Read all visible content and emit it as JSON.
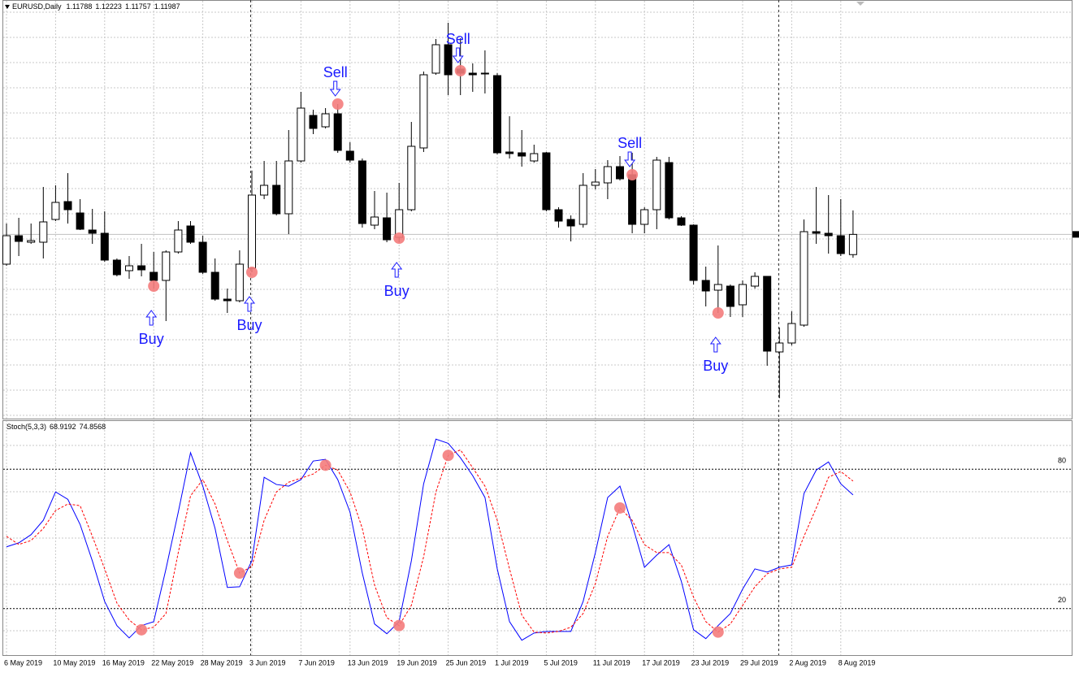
{
  "chart_data": [
    {
      "type": "candlestick",
      "title": "EURUSD,Daily",
      "categories": [
        "6 May 2019",
        null,
        null,
        null,
        "10 May 2019",
        null,
        null,
        null,
        "16 May 2019",
        null,
        null,
        null,
        "22 May 2019",
        null,
        null,
        null,
        "28 May 2019",
        null,
        null,
        null,
        "3 Jun 2019",
        null,
        null,
        null,
        "7 Jun 2019",
        null,
        null,
        null,
        "13 Jun 2019",
        null,
        null,
        null,
        "19 Jun 2019",
        null,
        null,
        null,
        "25 Jun 2019",
        null,
        null,
        null,
        "1 Jul 2019",
        null,
        null,
        null,
        "5 Jul 2019",
        null,
        null,
        null,
        "11 Jul 2019",
        null,
        null,
        null,
        "17 Jul 2019",
        null,
        null,
        null,
        "23 Jul 2019",
        null,
        null,
        null,
        "29 Jul 2019",
        null,
        null,
        null,
        "2 Aug 2019",
        null,
        null,
        null,
        "8 Aug 2019",
        null
      ],
      "open": [
        1.11694,
        1.11974,
        1.1191,
        1.1191,
        1.12134,
        1.1231,
        1.12198,
        1.1203,
        1.11998,
        1.11734,
        1.1163,
        1.11678,
        1.11614,
        1.11534,
        1.11814,
        1.1207,
        1.1191,
        1.11614,
        1.1135,
        1.11334,
        1.11654,
        1.12374,
        1.1247,
        1.1219,
        1.1271,
        1.13158,
        1.13046,
        1.13174,
        1.12806,
        1.1271,
        1.12078,
        1.1215,
        1.11958,
        1.1223,
        1.12838,
        1.13574,
        1.13854,
        1.13614,
        1.13574,
        1.13574,
        1.1355,
        1.12798,
        1.1279,
        1.1271,
        1.1279,
        1.1223,
        1.12134,
        1.12086,
        1.1247,
        1.12494,
        1.12654,
        1.12574,
        1.12086,
        1.1223,
        1.12694,
        1.1215,
        1.12078,
        1.11534,
        1.11438,
        1.11478,
        1.11294,
        1.11478,
        1.11574,
        1.1083,
        1.10918,
        1.11094,
        1.12014,
        1.11998,
        1.11974,
        1.11788
      ],
      "high": [
        1.12094,
        1.1215,
        1.12094,
        1.12454,
        1.1247,
        1.1259,
        1.12334,
        1.12238,
        1.12214,
        1.1175,
        1.11774,
        1.11894,
        1.11814,
        1.1183,
        1.12118,
        1.12118,
        1.11974,
        1.1175,
        1.11454,
        1.1183,
        1.12614,
        1.1271,
        1.1271,
        1.13014,
        1.1339,
        1.13214,
        1.1323,
        1.1327,
        1.12894,
        1.12734,
        1.12414,
        1.12398,
        1.12494,
        1.13094,
        1.1359,
        1.1391,
        1.1407,
        1.13918,
        1.1367,
        1.13798,
        1.13574,
        1.1315,
        1.13014,
        1.1287,
        1.12798,
        1.12254,
        1.12174,
        1.1259,
        1.1263,
        1.12718,
        1.12758,
        1.1279,
        1.12254,
        1.1275,
        1.1275,
        1.12166,
        1.12086,
        1.1167,
        1.11878,
        1.11494,
        1.11534,
        1.11614,
        1.11574,
        1.1107,
        1.1123,
        1.12134,
        1.12454,
        1.12374,
        1.12334,
        1.12223
      ],
      "low": [
        1.11678,
        1.11774,
        1.11894,
        1.1175,
        1.12118,
        1.12094,
        1.1203,
        1.11894,
        1.11718,
        1.11574,
        1.1155,
        1.11574,
        1.11454,
        1.11134,
        1.11798,
        1.11894,
        1.11598,
        1.11334,
        1.11214,
        1.11318,
        1.11614,
        1.12334,
        1.12174,
        1.1199,
        1.12694,
        1.12974,
        1.1303,
        1.1279,
        1.12694,
        1.12054,
        1.12038,
        1.1191,
        1.1191,
        1.12214,
        1.12798,
        1.13558,
        1.13358,
        1.13358,
        1.1339,
        1.13374,
        1.12774,
        1.12734,
        1.12654,
        1.12694,
        1.12214,
        1.12054,
        1.11918,
        1.12054,
        1.1243,
        1.12334,
        1.12518,
        1.11998,
        1.11998,
        1.12038,
        1.12134,
        1.1207,
        1.11494,
        1.11278,
        1.11214,
        1.11174,
        1.11174,
        1.11454,
        1.10694,
        1.10374,
        1.10894,
        1.11078,
        1.11894,
        1.11798,
        1.11774,
        1.11757
      ],
      "close": [
        1.11974,
        1.11918,
        1.11926,
        1.1211,
        1.12302,
        1.1223,
        1.12038,
        1.11998,
        1.11734,
        1.1159,
        1.11678,
        1.11638,
        1.11534,
        1.11814,
        1.1203,
        1.1191,
        1.11614,
        1.1135,
        1.11334,
        1.11694,
        1.12374,
        1.1247,
        1.1219,
        1.1271,
        1.1323,
        1.1303,
        1.13174,
        1.12814,
        1.12718,
        1.12094,
        1.12158,
        1.11934,
        1.1223,
        1.12854,
        1.13558,
        1.13854,
        1.13558,
        1.13574,
        1.13558,
        1.13566,
        1.1279,
        1.12782,
        1.12758,
        1.12782,
        1.1223,
        1.12118,
        1.1207,
        1.1247,
        1.12502,
        1.12654,
        1.12534,
        1.12086,
        1.1223,
        1.12718,
        1.1215,
        1.12078,
        1.11534,
        1.1143,
        1.11494,
        1.11278,
        1.11494,
        1.11574,
        1.10838,
        1.10918,
        1.1111,
        1.12014,
        1.11998,
        1.11974,
        1.11798,
        1.11987
      ],
      "up_color": "#ffffff",
      "down_color": "#000000",
      "ylim": [
        1.10174,
        1.14294
      ],
      "grid": true,
      "signals": {
        "color": "#f47c7c",
        "text_color": "#1a1aff",
        "values": [
          null,
          null,
          null,
          null,
          null,
          null,
          null,
          null,
          null,
          null,
          null,
          null,
          1.11478,
          null,
          null,
          null,
          null,
          null,
          null,
          null,
          1.11614,
          null,
          null,
          null,
          null,
          null,
          null,
          1.1327,
          null,
          null,
          null,
          null,
          1.1195,
          null,
          null,
          null,
          null,
          1.13598,
          null,
          null,
          null,
          null,
          null,
          null,
          null,
          null,
          null,
          null,
          null,
          null,
          null,
          1.12574,
          null,
          null,
          null,
          null,
          null,
          null,
          1.11214,
          null,
          null,
          null,
          null,
          null,
          null,
          null,
          null,
          null,
          null,
          null
        ],
        "labels": [
          null,
          null,
          null,
          null,
          null,
          null,
          null,
          null,
          null,
          null,
          null,
          null,
          "Buy",
          null,
          null,
          null,
          null,
          null,
          null,
          null,
          "Buy",
          null,
          null,
          null,
          null,
          null,
          null,
          "Sell",
          null,
          null,
          null,
          null,
          "Buy",
          null,
          null,
          null,
          null,
          "Sell",
          null,
          null,
          null,
          null,
          null,
          null,
          null,
          null,
          null,
          null,
          null,
          null,
          null,
          "Sell",
          null,
          null,
          null,
          null,
          null,
          null,
          "Buy",
          null,
          null,
          null,
          null,
          null,
          null,
          null,
          null,
          null,
          null,
          null
        ]
      }
    },
    {
      "type": "line",
      "title": "Stoch(5,3,3)",
      "ylim": [
        0,
        100
      ],
      "yticks": [
        20,
        80
      ],
      "grid": true,
      "series": [
        {
          "color": "#0000ff",
          "dashed": false,
          "values": [
            46.6,
            48.3,
            51.8,
            58.0,
            70.2,
            67.0,
            56.2,
            40.5,
            23.1,
            12.7,
            7.4,
            12.7,
            14.4,
            37.1,
            61.5,
            87.1,
            72.7,
            54.5,
            29.1,
            29.4,
            40.6,
            76.5,
            73.4,
            72.7,
            75.5,
            83.5,
            84.2,
            75.5,
            61.5,
            35.3,
            13.4,
            9.2,
            14.4,
            40.6,
            73.7,
            92.9,
            91.1,
            84.9,
            77.2,
            67.8,
            37.1,
            14.4,
            6.4,
            9.5,
            10.2,
            10.2,
            10.2,
            23.1,
            44.1,
            67.8,
            72.7,
            56.2,
            37.8,
            43.0,
            47.5,
            31.8,
            10.9,
            7.1,
            12.7,
            17.9,
            28.4,
            37.1,
            35.7,
            37.8,
            38.8,
            69.5,
            79.6,
            83.1,
            73.7,
            68.9192
          ]
        },
        {
          "color": "#ff0000",
          "dashed": true,
          "values": [
            51.1,
            47.6,
            49.3,
            54.5,
            62.2,
            65.0,
            64.3,
            51.1,
            37.1,
            22.4,
            15.1,
            10.9,
            12.0,
            17.9,
            44.1,
            68.5,
            75.5,
            65.0,
            49.3,
            35.3,
            38.1,
            58.0,
            70.2,
            74.4,
            76.1,
            77.9,
            81.7,
            79.6,
            70.2,
            54.5,
            30.1,
            16.1,
            12.7,
            21.4,
            42.3,
            70.2,
            85.9,
            88.3,
            80.6,
            72.7,
            58.0,
            37.1,
            17.2,
            9.9,
            9.5,
            10.2,
            12.0,
            17.9,
            30.8,
            51.1,
            63.3,
            58.0,
            47.5,
            44.1,
            44.1,
            38.8,
            24.9,
            14.4,
            9.9,
            13.4,
            21.4,
            29.4,
            35.0,
            37.1,
            37.8,
            51.1,
            63.3,
            76.5,
            79.0,
            74.8568
          ]
        }
      ],
      "markers": {
        "color": "#f47c7c",
        "values": [
          null,
          null,
          null,
          null,
          null,
          null,
          null,
          null,
          null,
          null,
          null,
          10.9,
          null,
          null,
          null,
          null,
          null,
          null,
          null,
          35.3,
          null,
          null,
          null,
          null,
          null,
          null,
          81.7,
          null,
          null,
          null,
          null,
          null,
          12.7,
          null,
          null,
          null,
          85.9,
          null,
          null,
          null,
          null,
          null,
          null,
          null,
          null,
          null,
          null,
          null,
          null,
          null,
          63.3,
          null,
          null,
          null,
          null,
          null,
          null,
          null,
          9.9,
          null,
          null,
          null,
          null,
          null,
          null,
          null,
          null,
          null,
          null,
          null
        ]
      }
    }
  ]
}
